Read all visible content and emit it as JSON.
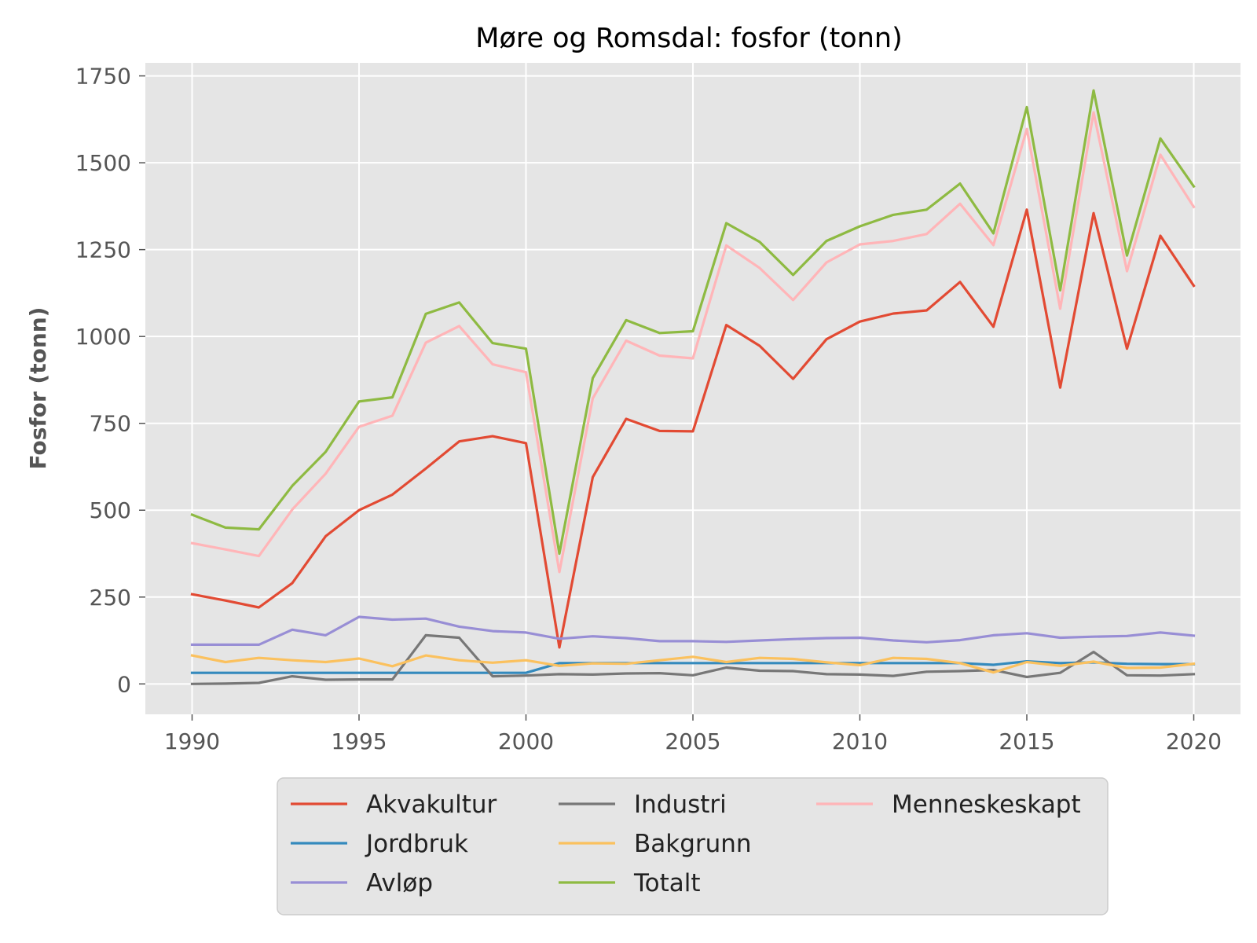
{
  "chart_data": {
    "type": "line",
    "title": "Møre og Romsdal: fosfor (tonn)",
    "xlabel": "",
    "ylabel": "Fosfor (tonn)",
    "xlim": [
      1988.6,
      2021.4
    ],
    "ylim": [
      -87.5,
      1787.5
    ],
    "xticks": [
      "1990",
      "1995",
      "2000",
      "2005",
      "2010",
      "2015",
      "2020"
    ],
    "yticks": [
      "0",
      "250",
      "500",
      "750",
      "1000",
      "1250",
      "1500",
      "1750"
    ],
    "grid": true,
    "legend_position": "below",
    "x": [
      1990,
      1991,
      1992,
      1993,
      1994,
      1995,
      1996,
      1997,
      1998,
      1999,
      2000,
      2001,
      2002,
      2003,
      2004,
      2005,
      2006,
      2007,
      2008,
      2009,
      2010,
      2011,
      2012,
      2013,
      2014,
      2015,
      2016,
      2017,
      2018,
      2019,
      2020
    ],
    "series": [
      {
        "name": "Akvakultur",
        "color": "#E24A33",
        "values": [
          258,
          240,
          220,
          290,
          425,
          500,
          545,
          620,
          698,
          713,
          693,
          105,
          595,
          763,
          728,
          727,
          1033,
          973,
          878,
          992,
          1043,
          1066,
          1075,
          1157,
          1028,
          1365,
          853,
          1355,
          965,
          1290,
          1146
        ]
      },
      {
        "name": "Jordbruk",
        "color": "#348ABD",
        "values": [
          32,
          32,
          32,
          32,
          32,
          32,
          32,
          32,
          32,
          32,
          32,
          60,
          60,
          60,
          60,
          60,
          60,
          60,
          60,
          60,
          60,
          60,
          60,
          60,
          55,
          65,
          60,
          62,
          58,
          57,
          57
        ]
      },
      {
        "name": "Avløp",
        "color": "#988ED5",
        "values": [
          113,
          113,
          113,
          156,
          140,
          193,
          185,
          188,
          165,
          152,
          148,
          130,
          137,
          132,
          123,
          123,
          121,
          125,
          129,
          132,
          133,
          125,
          120,
          126,
          140,
          146,
          133,
          136,
          138,
          148,
          139
        ]
      },
      {
        "name": "Industri",
        "color": "#777777",
        "values": [
          0,
          1,
          3,
          22,
          12,
          13,
          13,
          140,
          133,
          22,
          24,
          28,
          27,
          30,
          31,
          25,
          47,
          38,
          37,
          28,
          27,
          23,
          35,
          37,
          40,
          20,
          32,
          92,
          25,
          24,
          28
        ]
      },
      {
        "name": "Bakgrunn",
        "color": "#FBC15E",
        "values": [
          82,
          63,
          75,
          68,
          63,
          73,
          51,
          82,
          68,
          61,
          68,
          52,
          59,
          58,
          68,
          78,
          63,
          75,
          72,
          62,
          54,
          75,
          72,
          60,
          33,
          63,
          52,
          64,
          46,
          47,
          58
        ]
      },
      {
        "name": "Totalt",
        "color": "#8EBA42",
        "values": [
          487,
          450,
          445,
          570,
          668,
          813,
          825,
          1065,
          1098,
          981,
          965,
          375,
          880,
          1047,
          1010,
          1015,
          1326,
          1272,
          1177,
          1275,
          1317,
          1350,
          1365,
          1440,
          1297,
          1660,
          1133,
          1708,
          1233,
          1570,
          1432
        ]
      },
      {
        "name": "Menneskeskapt",
        "color": "#FFB5B8",
        "values": [
          405,
          387,
          368,
          502,
          605,
          740,
          772,
          982,
          1030,
          920,
          897,
          322,
          822,
          988,
          945,
          937,
          1262,
          1197,
          1105,
          1213,
          1265,
          1275,
          1295,
          1382,
          1263,
          1597,
          1080,
          1645,
          1188,
          1523,
          1373
        ]
      }
    ],
    "legend_order": [
      0,
      1,
      2,
      3,
      4,
      5,
      6
    ],
    "legend_columns": 3
  }
}
